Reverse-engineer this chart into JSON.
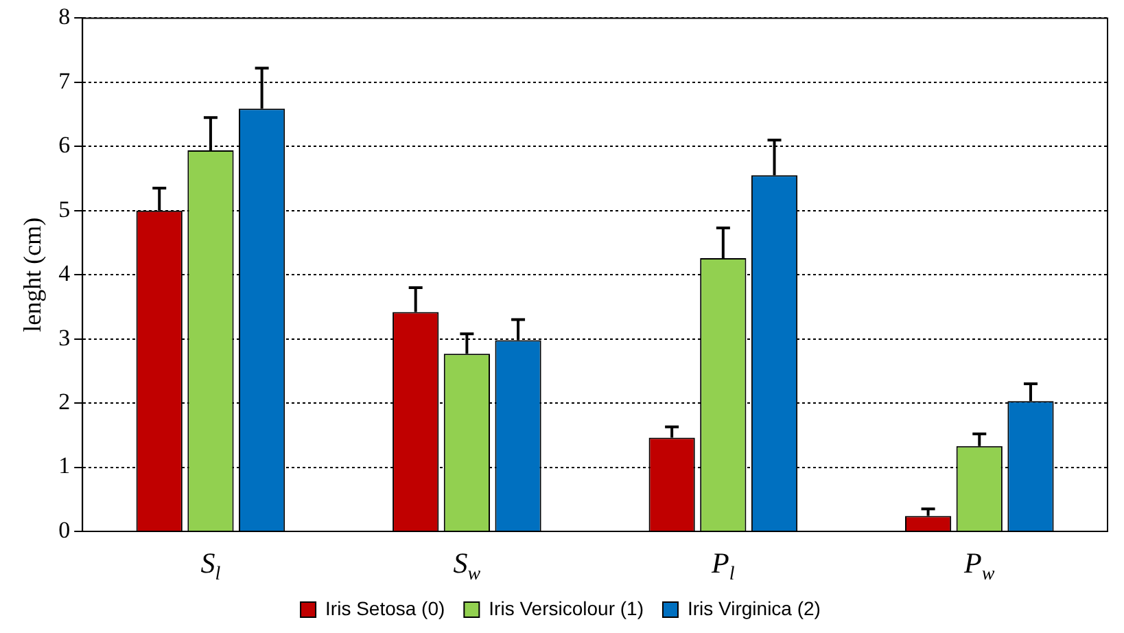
{
  "chart_data": {
    "type": "bar",
    "ylabel": "lenght (cm)",
    "categories": [
      "S$_{l}$",
      "S$_{w}$",
      "P$_{l}$",
      "P$_{w}$"
    ],
    "series": [
      {
        "name": "Iris Setosa (0)",
        "color": "#c00000",
        "values": [
          5.0,
          3.42,
          1.46,
          0.24
        ],
        "errors": [
          [
            5.0,
            5.35
          ],
          [
            3.42,
            3.8
          ],
          [
            1.46,
            1.63
          ],
          [
            0.24,
            0.35
          ]
        ]
      },
      {
        "name": "Iris Versicolour (1)",
        "color": "#92d050",
        "values": [
          5.94,
          2.77,
          4.26,
          1.33
        ],
        "errors": [
          [
            5.94,
            6.45
          ],
          [
            2.77,
            3.08
          ],
          [
            4.26,
            4.73
          ],
          [
            1.33,
            1.52
          ]
        ]
      },
      {
        "name": "Iris Virginica (2)",
        "color": "#0070c0",
        "values": [
          6.59,
          2.98,
          5.55,
          2.03
        ],
        "errors": [
          [
            6.59,
            7.22
          ],
          [
            2.98,
            3.3
          ],
          [
            5.55,
            6.1
          ],
          [
            2.03,
            2.3
          ]
        ]
      }
    ],
    "ylim": [
      0,
      8
    ],
    "yticks": [
      0,
      1,
      2,
      3,
      4,
      5,
      6,
      7,
      8
    ],
    "grid": "y",
    "legend": "bottom"
  }
}
